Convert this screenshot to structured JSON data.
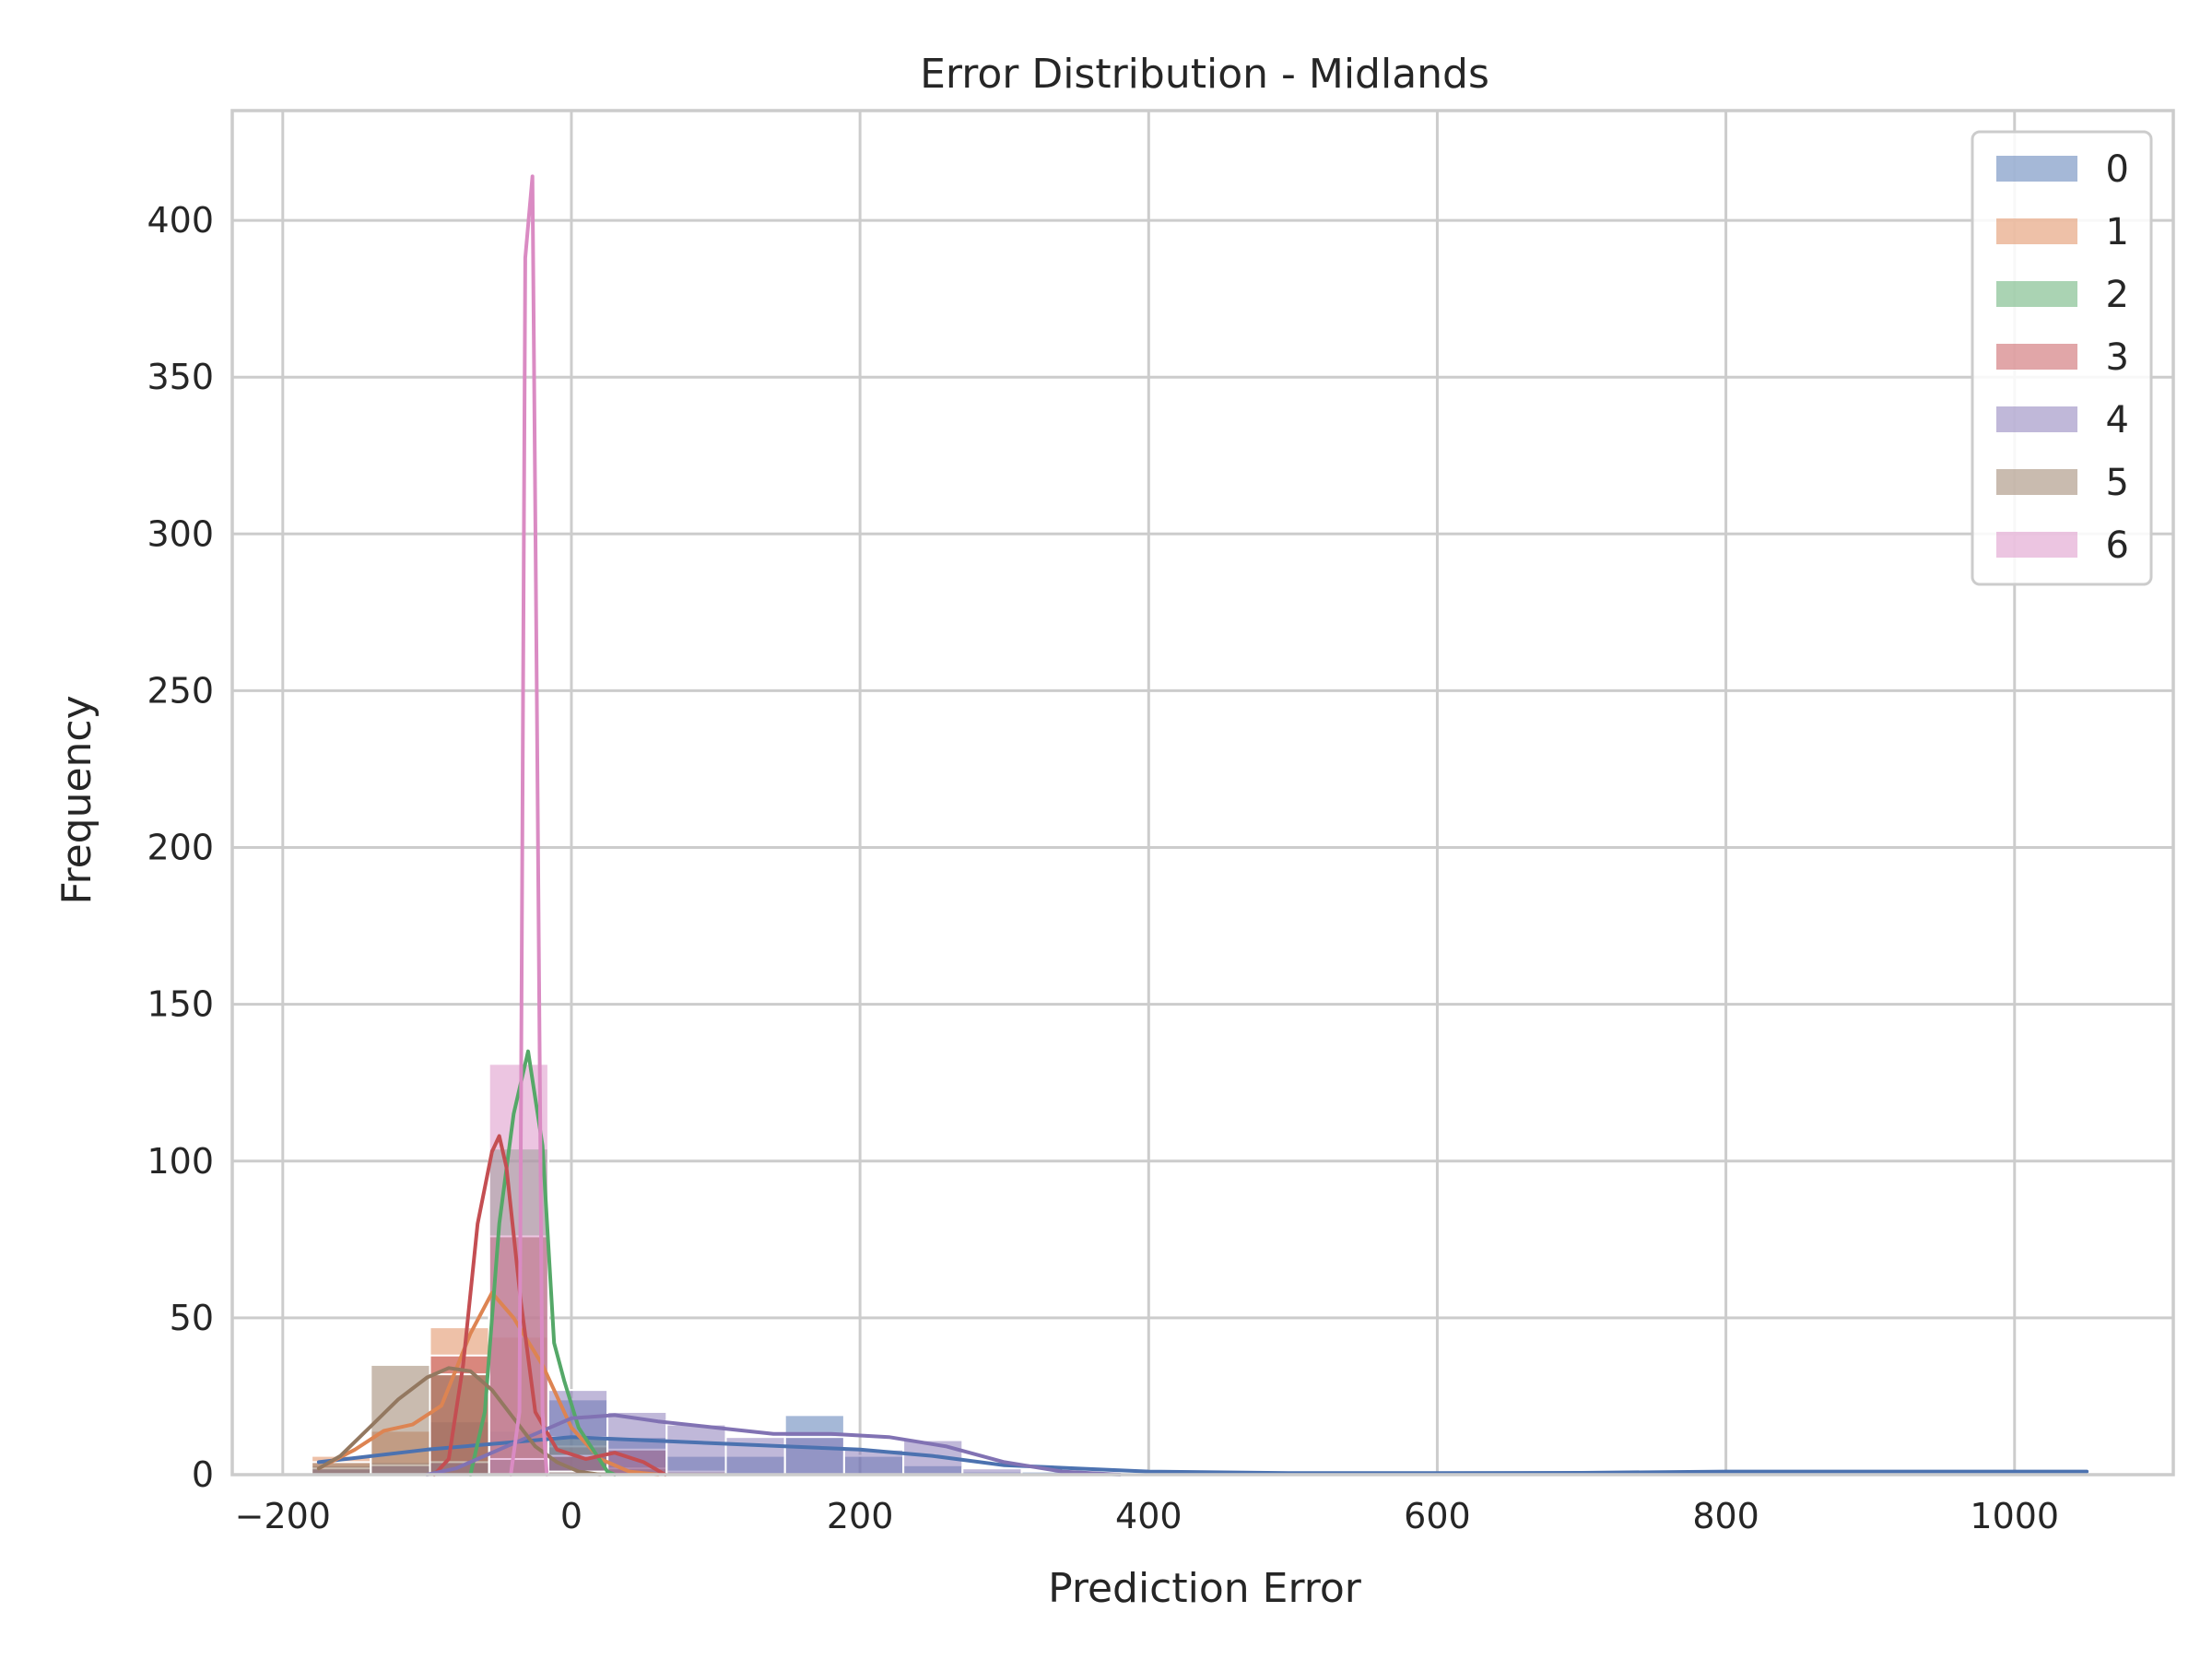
{
  "chart_data": {
    "type": "histogram",
    "title": "Error Distribution - Midlands",
    "xlabel": "Prediction Error",
    "ylabel": "Frequency",
    "xlim": [
      -235,
      1110
    ],
    "ylim": [
      0,
      435
    ],
    "xticks": [
      -200,
      0,
      200,
      400,
      600,
      800,
      1000
    ],
    "xtick_labels": [
      "−200",
      "0",
      "200",
      "400",
      "600",
      "800",
      "1000"
    ],
    "yticks": [
      0,
      50,
      100,
      150,
      200,
      250,
      300,
      350,
      400
    ],
    "ytick_labels": [
      "0",
      "50",
      "100",
      "150",
      "200",
      "250",
      "300",
      "350",
      "400"
    ],
    "grid": true,
    "legend_position": "top-right",
    "bin_edges": [
      -180,
      -139,
      -98,
      -57,
      -16,
      25,
      66,
      107,
      148,
      189,
      230,
      271,
      312,
      353,
      394,
      435,
      476,
      517,
      558,
      599,
      640,
      681,
      722,
      763,
      804,
      845,
      886,
      927,
      968,
      1009,
      1050
    ],
    "series": [
      {
        "name": "0",
        "color": "#4c72b0",
        "counts": [
          3,
          4,
          17,
          14,
          24,
          12,
          6,
          6,
          19,
          6,
          3,
          1,
          1,
          0,
          0,
          0,
          0,
          0,
          0,
          0,
          0,
          0,
          0,
          0,
          1,
          0,
          0,
          0,
          0,
          1
        ],
        "kde": [
          [
            -175,
            4
          ],
          [
            -100,
            8
          ],
          [
            -50,
            10
          ],
          [
            0,
            12
          ],
          [
            50,
            11
          ],
          [
            100,
            10
          ],
          [
            150,
            9
          ],
          [
            200,
            8
          ],
          [
            250,
            6
          ],
          [
            300,
            3
          ],
          [
            350,
            2
          ],
          [
            400,
            1
          ],
          [
            500,
            0.5
          ],
          [
            600,
            0.5
          ],
          [
            700,
            0.6
          ],
          [
            800,
            1
          ],
          [
            850,
            1
          ],
          [
            950,
            1
          ],
          [
            1050,
            1
          ]
        ]
      },
      {
        "name": "1",
        "color": "#dd8452",
        "counts": [
          6,
          14,
          47,
          44,
          9,
          2,
          1,
          0,
          0,
          0,
          0,
          0,
          0,
          0,
          0,
          0,
          0,
          0,
          0,
          0,
          0,
          0,
          0,
          0,
          0,
          0,
          0,
          0,
          0,
          0
        ],
        "kde": [
          [
            -175,
            2
          ],
          [
            -150,
            8
          ],
          [
            -130,
            14
          ],
          [
            -110,
            16
          ],
          [
            -90,
            22
          ],
          [
            -70,
            45
          ],
          [
            -55,
            58
          ],
          [
            -40,
            50
          ],
          [
            -20,
            35
          ],
          [
            0,
            15
          ],
          [
            20,
            5
          ],
          [
            40,
            1
          ],
          [
            60,
            0
          ]
        ]
      },
      {
        "name": "2",
        "color": "#55a868",
        "counts": [
          0,
          0,
          0,
          104,
          12,
          0,
          0,
          0,
          0,
          0,
          0,
          0,
          0,
          0,
          0,
          0,
          0,
          0,
          0,
          0,
          0,
          0,
          0,
          0,
          0,
          0,
          0,
          0,
          0,
          0
        ],
        "kde": [
          [
            -70,
            0
          ],
          [
            -60,
            20
          ],
          [
            -50,
            80
          ],
          [
            -40,
            115
          ],
          [
            -30,
            135
          ],
          [
            -20,
            105
          ],
          [
            -12,
            42
          ],
          [
            -5,
            30
          ],
          [
            5,
            15
          ],
          [
            15,
            8
          ],
          [
            25,
            1
          ],
          [
            30,
            0
          ]
        ]
      },
      {
        "name": "3",
        "color": "#c44e52",
        "counts": [
          0,
          0,
          38,
          76,
          6,
          8,
          0,
          0,
          0,
          0,
          0,
          0,
          0,
          0,
          0,
          0,
          0,
          0,
          0,
          0,
          0,
          0,
          0,
          0,
          0,
          0,
          0,
          0,
          0,
          0
        ],
        "kde": [
          [
            -95,
            0
          ],
          [
            -85,
            5
          ],
          [
            -75,
            35
          ],
          [
            -65,
            80
          ],
          [
            -55,
            103
          ],
          [
            -50,
            108
          ],
          [
            -45,
            98
          ],
          [
            -35,
            55
          ],
          [
            -25,
            20
          ],
          [
            -10,
            8
          ],
          [
            10,
            5
          ],
          [
            30,
            7
          ],
          [
            50,
            4
          ],
          [
            65,
            0
          ]
        ]
      },
      {
        "name": "4",
        "color": "#8172b3",
        "counts": [
          2,
          3,
          4,
          5,
          27,
          20,
          16,
          12,
          12,
          8,
          11,
          2,
          0,
          0,
          0,
          0,
          0,
          0,
          0,
          0,
          0,
          0,
          0,
          0,
          0,
          0,
          0,
          0,
          0,
          0
        ],
        "kde": [
          [
            -100,
            0
          ],
          [
            -80,
            2
          ],
          [
            -60,
            6
          ],
          [
            -30,
            12
          ],
          [
            0,
            18
          ],
          [
            30,
            19
          ],
          [
            60,
            17
          ],
          [
            100,
            15
          ],
          [
            140,
            13
          ],
          [
            180,
            13
          ],
          [
            220,
            12
          ],
          [
            260,
            9
          ],
          [
            300,
            4
          ],
          [
            340,
            1
          ],
          [
            380,
            0
          ]
        ]
      },
      {
        "name": "5",
        "color": "#937860",
        "counts": [
          4,
          35,
          32,
          5,
          1,
          0,
          0,
          0,
          0,
          0,
          0,
          0,
          0,
          0,
          0,
          0,
          0,
          0,
          0,
          0,
          0,
          0,
          0,
          0,
          0,
          0,
          0,
          0,
          0,
          0
        ],
        "kde": [
          [
            -175,
            2
          ],
          [
            -160,
            6
          ],
          [
            -140,
            15
          ],
          [
            -120,
            24
          ],
          [
            -100,
            31
          ],
          [
            -85,
            34
          ],
          [
            -70,
            33
          ],
          [
            -55,
            27
          ],
          [
            -40,
            18
          ],
          [
            -25,
            9
          ],
          [
            -10,
            4
          ],
          [
            5,
            1
          ],
          [
            20,
            0
          ]
        ]
      },
      {
        "name": "6",
        "color": "#da8bc3",
        "counts": [
          0,
          0,
          0,
          131,
          0,
          0,
          0,
          0,
          0,
          0,
          0,
          0,
          0,
          0,
          0,
          0,
          0,
          0,
          0,
          0,
          0,
          0,
          0,
          0,
          0,
          0,
          0,
          0,
          0,
          0
        ],
        "kde": [
          [
            -42,
            0
          ],
          [
            -36,
            20
          ],
          [
            -32,
            388
          ],
          [
            -27,
            414
          ],
          [
            -24,
            250
          ],
          [
            -20,
            20
          ],
          [
            -17,
            0
          ]
        ]
      }
    ]
  }
}
